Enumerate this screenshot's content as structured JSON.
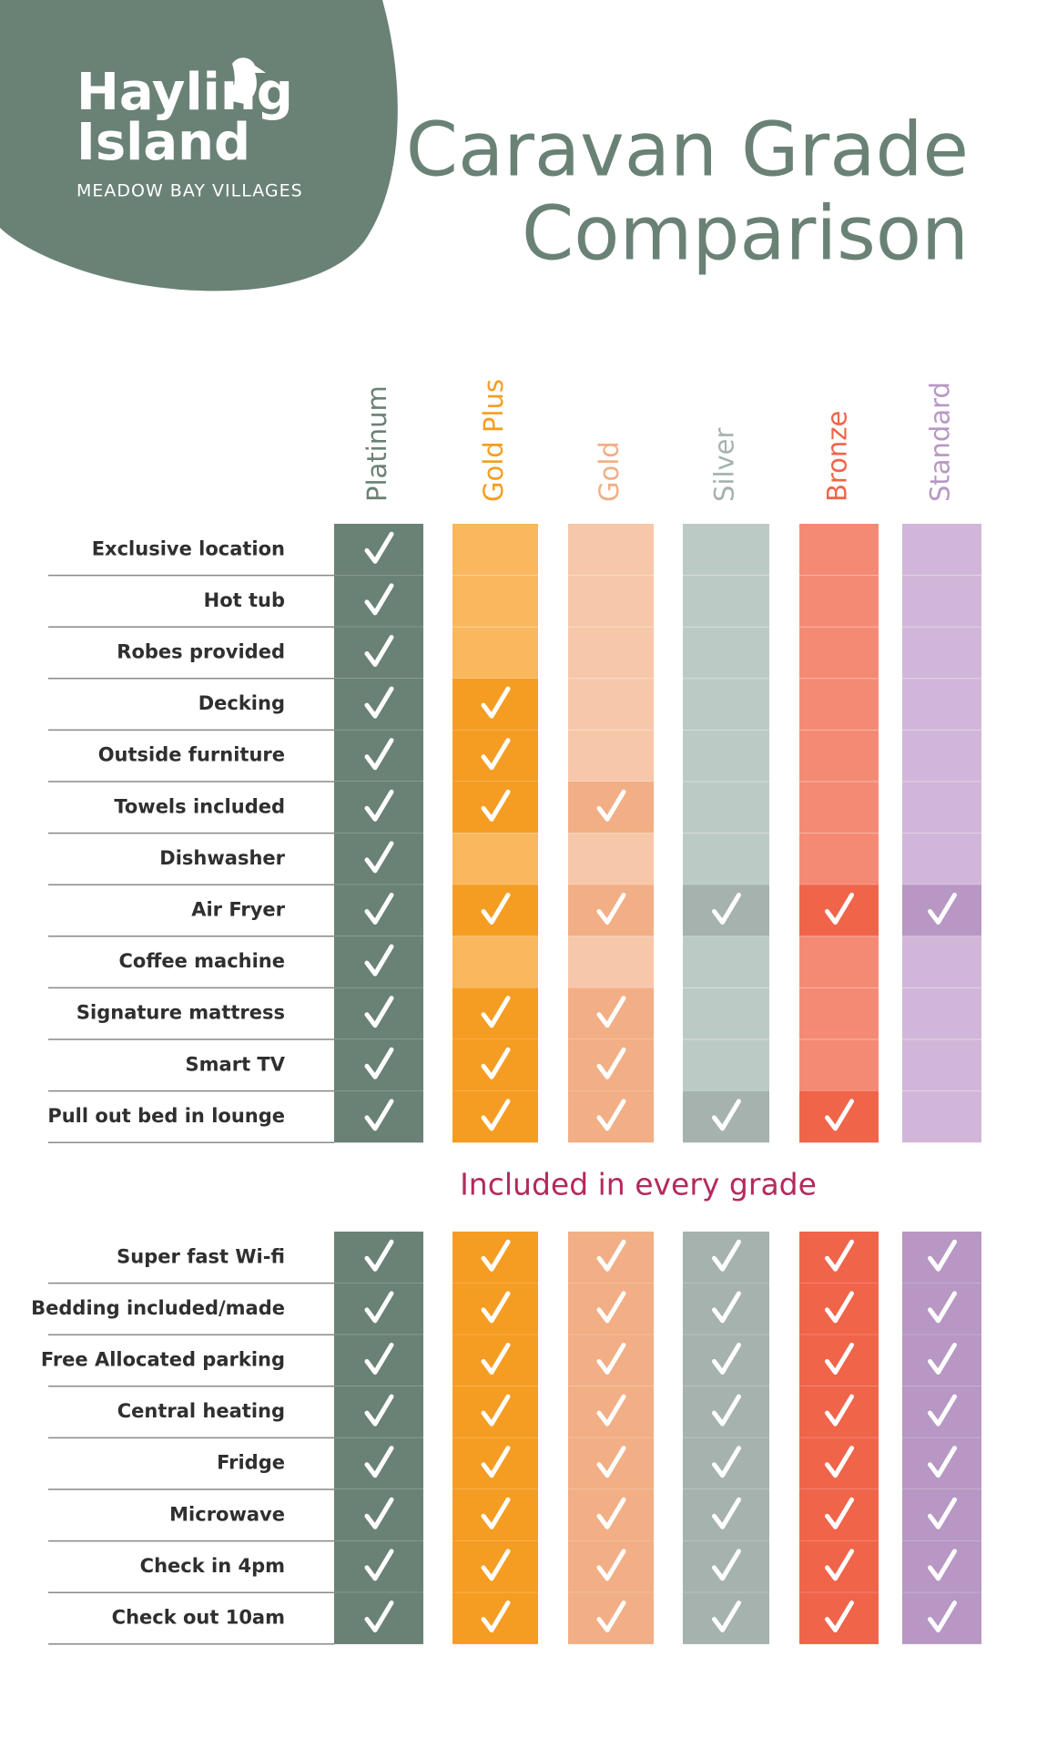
{
  "logo": {
    "line1": "Hayling",
    "line2": "Island",
    "tagline": "MEADOW BAY VILLAGES"
  },
  "title": {
    "line1": "Caravan Grade",
    "line2": "Comparison"
  },
  "grades": [
    {
      "name": "Platinum",
      "color": "#6a8275",
      "light": "#6a8275"
    },
    {
      "name": "Gold Plus",
      "color": "#f59d22",
      "light": "#f9b75e"
    },
    {
      "name": "Gold",
      "color": "#f2ae85",
      "light": "#f6c7a9"
    },
    {
      "name": "Silver",
      "color": "#a5b2ad",
      "light": "#bccac5"
    },
    {
      "name": "Bronze",
      "color": "#f0644a",
      "light": "#f48a74"
    },
    {
      "name": "Standard",
      "color": "#b897c4",
      "light": "#d2b6d9"
    }
  ],
  "features": [
    {
      "label": "Exclusive location",
      "included": [
        true,
        false,
        false,
        false,
        false,
        false
      ]
    },
    {
      "label": "Hot tub",
      "included": [
        true,
        false,
        false,
        false,
        false,
        false
      ]
    },
    {
      "label": "Robes provided",
      "included": [
        true,
        false,
        false,
        false,
        false,
        false
      ]
    },
    {
      "label": "Decking",
      "included": [
        true,
        true,
        false,
        false,
        false,
        false
      ]
    },
    {
      "label": "Outside furniture",
      "included": [
        true,
        true,
        false,
        false,
        false,
        false
      ]
    },
    {
      "label": "Towels included",
      "included": [
        true,
        true,
        true,
        false,
        false,
        false
      ]
    },
    {
      "label": "Dishwasher",
      "included": [
        true,
        false,
        false,
        false,
        false,
        false
      ]
    },
    {
      "label": "Air Fryer",
      "included": [
        true,
        true,
        true,
        true,
        true,
        true
      ]
    },
    {
      "label": "Coffee machine",
      "included": [
        true,
        false,
        false,
        false,
        false,
        false
      ]
    },
    {
      "label": "Signature mattress",
      "included": [
        true,
        true,
        true,
        false,
        false,
        false
      ]
    },
    {
      "label": "Smart TV",
      "included": [
        true,
        true,
        true,
        false,
        false,
        false
      ]
    },
    {
      "label": "Pull out bed in lounge",
      "included": [
        true,
        true,
        true,
        true,
        true,
        false
      ]
    }
  ],
  "every_grade_heading": "Included in every grade",
  "every_grade_features": [
    {
      "label": "Super fast Wi-fi",
      "included": [
        true,
        true,
        true,
        true,
        true,
        true
      ]
    },
    {
      "label": "Bedding included/made",
      "included": [
        true,
        true,
        true,
        true,
        true,
        true
      ]
    },
    {
      "label": "Free Allocated parking",
      "included": [
        true,
        true,
        true,
        true,
        true,
        true
      ]
    },
    {
      "label": "Central heating",
      "included": [
        true,
        true,
        true,
        true,
        true,
        true
      ]
    },
    {
      "label": "Fridge",
      "included": [
        true,
        true,
        true,
        true,
        true,
        true
      ]
    },
    {
      "label": "Microwave",
      "included": [
        true,
        true,
        true,
        true,
        true,
        true
      ]
    },
    {
      "label": "Check in 4pm",
      "included": [
        true,
        true,
        true,
        true,
        true,
        true
      ]
    },
    {
      "label": "Check out 10am",
      "included": [
        true,
        true,
        true,
        true,
        true,
        true
      ]
    }
  ]
}
